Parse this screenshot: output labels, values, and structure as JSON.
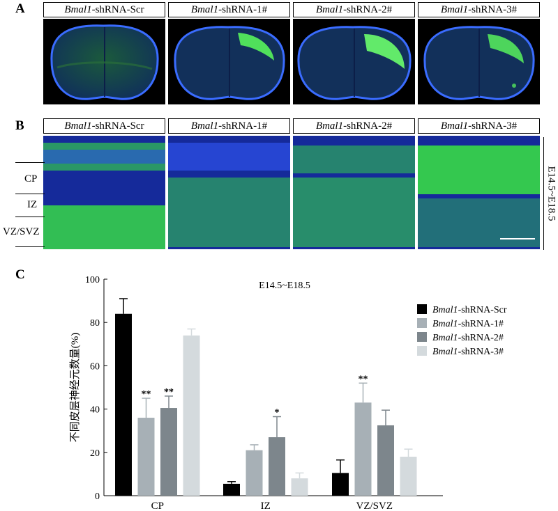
{
  "panels": {
    "a": "A",
    "b": "B",
    "c": "C"
  },
  "conditions": [
    {
      "gene": "Bmal1",
      "suffix": "-shRNA-Scr"
    },
    {
      "gene": "Bmal1",
      "suffix": "-shRNA-1#"
    },
    {
      "gene": "Bmal1",
      "suffix": "-shRNA-2#"
    },
    {
      "gene": "Bmal1",
      "suffix": "-shRNA-3#"
    }
  ],
  "layers": [
    "CP",
    "IZ",
    "VZ/SVZ"
  ],
  "stage_label": "E14.5~E18.5",
  "colors": {
    "nucleus_blue": "#1f3fb8",
    "gfp_green": "#3cf03c",
    "bar_scr": "#000000",
    "bar_1": "#a7b0b6",
    "bar_2": "#7d868c",
    "bar_3": "#d4dadd"
  },
  "chart_data": {
    "type": "bar",
    "title": "E14.5~E18.5",
    "ylabel": "不同皮层神经元数量(%)",
    "xlabel": "",
    "ylim": [
      0,
      100
    ],
    "yticks": [
      0,
      20,
      40,
      60,
      80,
      100
    ],
    "categories": [
      "CP",
      "IZ",
      "VZ/SVZ"
    ],
    "legend_position": "right",
    "series": [
      {
        "name": "Bmal1-shRNA-Scr",
        "values": [
          84,
          5.5,
          10.5
        ],
        "errors": [
          7,
          1,
          6
        ],
        "sig": [
          "",
          "",
          ""
        ]
      },
      {
        "name": "Bmal1-shRNA-1#",
        "values": [
          36,
          21,
          43
        ],
        "errors": [
          9,
          2.5,
          9
        ],
        "sig": [
          "**",
          "",
          "**"
        ]
      },
      {
        "name": "Bmal1-shRNA-2#",
        "values": [
          40.5,
          27,
          32.5
        ],
        "errors": [
          5.5,
          9.5,
          7
        ],
        "sig": [
          "**",
          "*",
          ""
        ]
      },
      {
        "name": "Bmal1-shRNA-3#",
        "values": [
          74,
          8,
          18
        ],
        "errors": [
          3,
          2.5,
          3.5
        ],
        "sig": [
          "",
          "",
          ""
        ]
      }
    ]
  }
}
